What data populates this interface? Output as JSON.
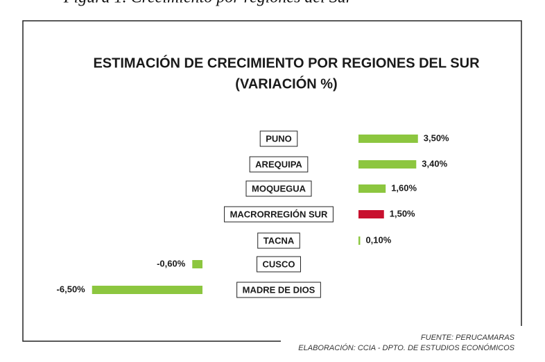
{
  "caption": "Figura 1. Crecimiento por regiones del Sur",
  "chart_data": {
    "type": "bar",
    "orientation": "horizontal",
    "title": [
      "ESTIMACIÓN DE CRECIMIENTO POR REGIONES DEL SUR",
      "(VARIACIÓN %)"
    ],
    "categories": [
      "PUNO",
      "AREQUIPA",
      "MOQUEGUA",
      "MACRORREGIÓN SUR",
      "TACNA",
      "CUSCO",
      "MADRE DE DIOS"
    ],
    "values": [
      3.5,
      3.4,
      1.6,
      1.5,
      0.1,
      -0.6,
      -6.5
    ],
    "value_labels": [
      "3,50%",
      "3,40%",
      "1,60%",
      "1,50%",
      "0,10%",
      "-0,60%",
      "-6,50%"
    ],
    "colors": [
      "#8cc63f",
      "#8cc63f",
      "#8cc63f",
      "#c8102e",
      "#8cc63f",
      "#8cc63f",
      "#8cc63f"
    ],
    "source": [
      "FUENTE: PERUCAMARAS",
      "ELABORACIÓN: CCIA - DPTO. DE ESTUDIOS ECONÓMICOS"
    ]
  }
}
